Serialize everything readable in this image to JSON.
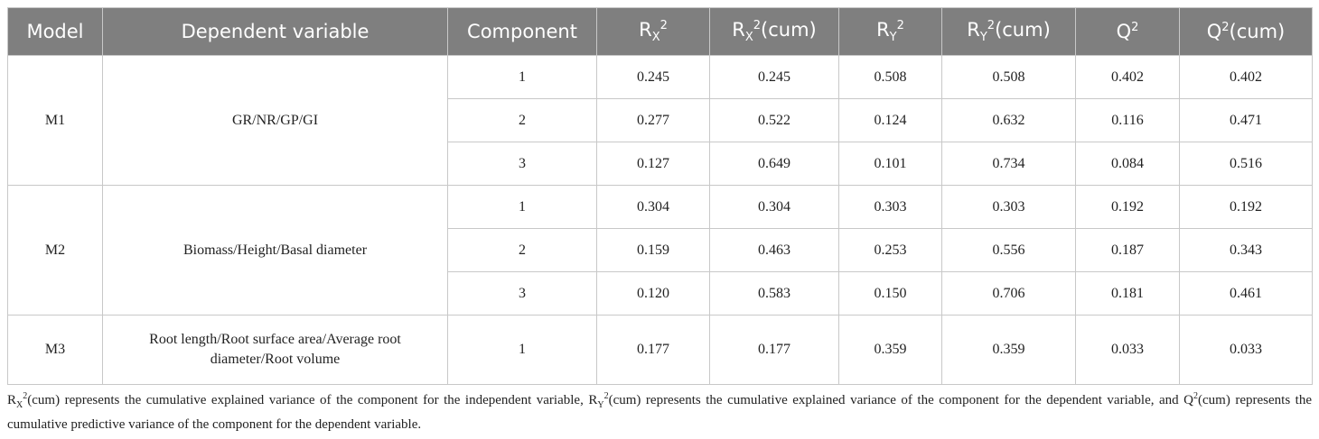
{
  "table": {
    "headers": [
      [
        {
          "t": "Model"
        }
      ],
      [
        {
          "t": "Dependent variable"
        }
      ],
      [
        {
          "t": "Component"
        }
      ],
      [
        {
          "t": "R"
        },
        {
          "sub": "X"
        },
        {
          "sup": "2"
        }
      ],
      [
        {
          "t": "R"
        },
        {
          "sub": "X"
        },
        {
          "sup": "2"
        },
        {
          "t": "(cum)"
        }
      ],
      [
        {
          "t": "R"
        },
        {
          "sub": "Y"
        },
        {
          "sup": "2"
        }
      ],
      [
        {
          "t": "R"
        },
        {
          "sub": "Y"
        },
        {
          "sup": "2"
        },
        {
          "t": "(cum)"
        }
      ],
      [
        {
          "t": "Q"
        },
        {
          "sup": "2"
        }
      ],
      [
        {
          "t": "Q"
        },
        {
          "sup": "2"
        },
        {
          "t": "(cum)"
        }
      ]
    ],
    "groups": [
      {
        "model": "M1",
        "dependent": "GR/NR/GP/GI",
        "rows": [
          [
            "1",
            "0.245",
            "0.245",
            "0.508",
            "0.508",
            "0.402",
            "0.402"
          ],
          [
            "2",
            "0.277",
            "0.522",
            "0.124",
            "0.632",
            "0.116",
            "0.471"
          ],
          [
            "3",
            "0.127",
            "0.649",
            "0.101",
            "0.734",
            "0.084",
            "0.516"
          ]
        ]
      },
      {
        "model": "M2",
        "dependent": "Biomass/Height/Basal diameter",
        "rows": [
          [
            "1",
            "0.304",
            "0.304",
            "0.303",
            "0.303",
            "0.192",
            "0.192"
          ],
          [
            "2",
            "0.159",
            "0.463",
            "0.253",
            "0.556",
            "0.187",
            "0.343"
          ],
          [
            "3",
            "0.120",
            "0.583",
            "0.150",
            "0.706",
            "0.181",
            "0.461"
          ]
        ]
      },
      {
        "model": "M3",
        "dependent": "Root length/Root surface area/Average root diameter/Root volume",
        "rows": [
          [
            "1",
            "0.177",
            "0.177",
            "0.359",
            "0.359",
            "0.033",
            "0.033"
          ]
        ]
      }
    ]
  },
  "note": [
    {
      "t": "R"
    },
    {
      "sub": "X"
    },
    {
      "sup": "2"
    },
    {
      "t": "(cum) represents the cumulative explained variance of the component for the independent variable, R"
    },
    {
      "sub": "Y"
    },
    {
      "sup": "2"
    },
    {
      "t": "(cum) represents the cumulative explained variance of the component for the dependent variable, and Q"
    },
    {
      "sup": "2"
    },
    {
      "t": "(cum) represents the cumulative predictive variance of the component for the dependent variable."
    }
  ]
}
